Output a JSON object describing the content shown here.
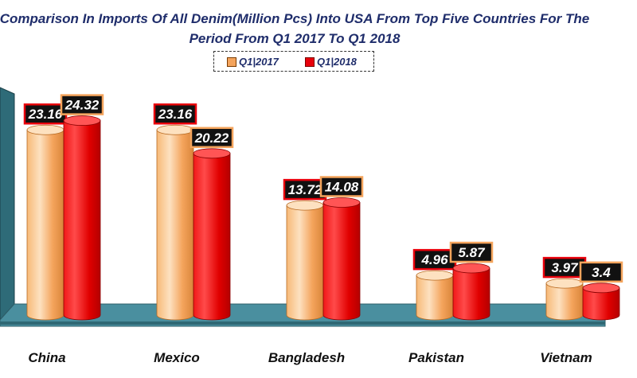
{
  "chart_data": {
    "type": "bar",
    "title": "Comparison In Imports Of All Denim(Million Pcs) Into USA From Top Five Countries For The",
    "subtitle": "Period From Q1 2017 To Q1 2018",
    "categories": [
      "China",
      "Mexico",
      "Bangladesh",
      "Pakistan",
      "Vietnam"
    ],
    "series": [
      {
        "name": "Q1|2017",
        "values": [
          23.16,
          23.16,
          13.72,
          4.96,
          3.97
        ]
      },
      {
        "name": "Q1|2018",
        "values": [
          24.32,
          20.22,
          14.08,
          5.87,
          3.4
        ]
      }
    ],
    "xlabel": "",
    "ylabel": "",
    "ylim": [
      0,
      27
    ],
    "grid": false,
    "legend_position": "top",
    "style": "3d-cylinder",
    "colors": {
      "Q1|2017": "#f4a45c",
      "Q1|2018": "#e8000b",
      "floor": "#4a8f9f",
      "wall": "#2e6b78"
    }
  }
}
